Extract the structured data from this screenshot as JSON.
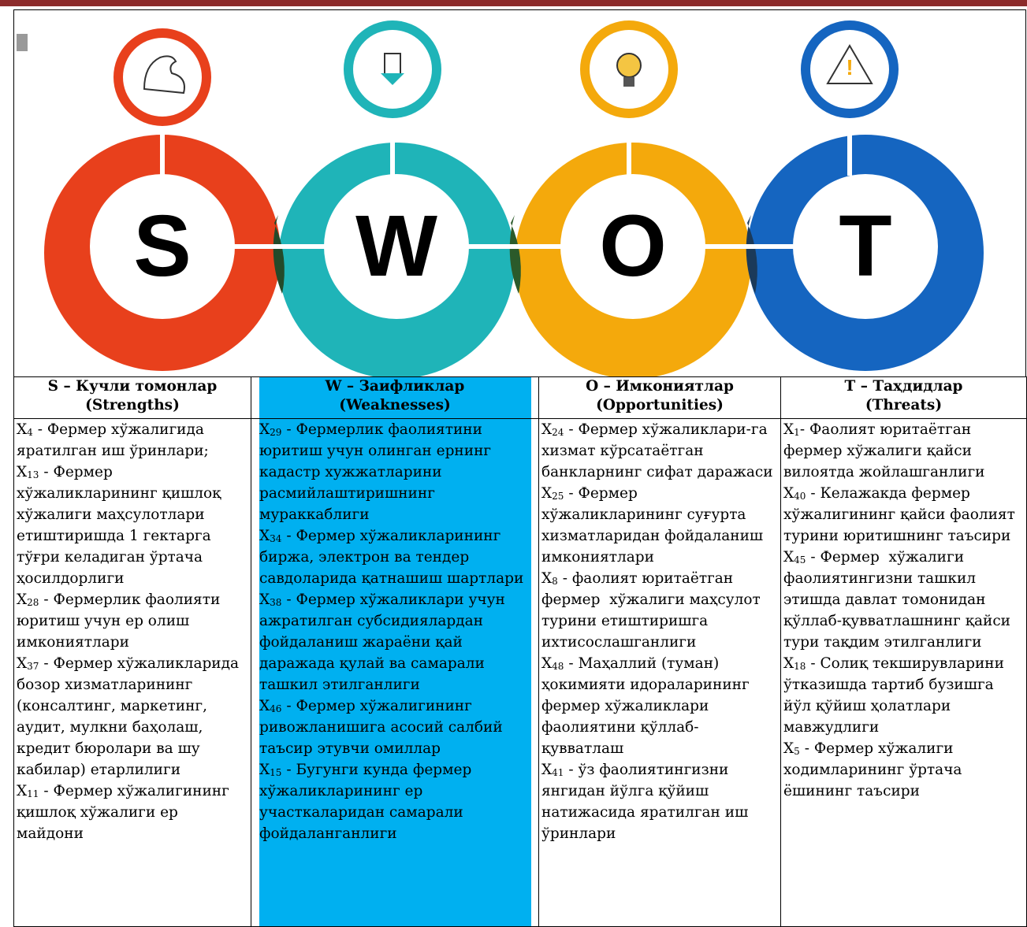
{
  "graphic": {
    "letters": [
      "S",
      "W",
      "O",
      "T"
    ]
  },
  "table": {
    "columns": [
      {
        "header": [
          "S – Кучли томонлар",
          "(Strengths)"
        ],
        "items": [
          {
            "label": "X",
            "sub": "4",
            "text": " - Фермер хўжалигида яратилган иш ўринлари;"
          },
          {
            "label": "X",
            "sub": "13",
            "text": " - Фермер хўжаликларининг қишлоқ хўжалиги маҳсулотлари етиштиришда 1 гектарга тўғри келадиган ўртача ҳосилдорлиги"
          },
          {
            "label": "X",
            "sub": "28",
            "text": " - Фермерлик фаолияти юритиш учун ер олиш имкониятлари"
          },
          {
            "label": "X",
            "sub": "37",
            "text": " - Фермер хўжаликларида бозор хизматларининг (консалтинг, маркетинг, аудит, мулкни баҳолаш, кредит бюролари ва шу кабилар) етарлилиги"
          },
          {
            "label": "X",
            "sub": "11",
            "text": " - Фермер хўжалигининг қишлоқ хўжалиги ер майдони"
          }
        ]
      },
      {
        "header": [
          "W – Заифликлар",
          "(Weaknesses)"
        ],
        "items": [
          {
            "label": "X",
            "sub": "29",
            "text": " - Фермерлик фаолиятини юритиш учун олинган ернинг кадастр хужжатларини расмийлаштиришнинг мураккаблиги"
          },
          {
            "label": "X",
            "sub": "34",
            "text": " - Фермер хўжаликларининг биржа, электрон ва тендер савдоларида қатнашиш шартлари"
          },
          {
            "label": "X",
            "sub": "38",
            "text": " - Фермер хўжаликлари учун ажратилган субсидиялардан   фойдаланиш жараёни қай даражада қулай ва самарали ташкил этилганлиги"
          },
          {
            "label": "X",
            "sub": "46",
            "text": " - Фермер хўжалигининг ривожланишига асосий салбий таъсир этувчи омиллар"
          },
          {
            "label": "X",
            "sub": "15",
            "text": " - Бугунги кунда фермер хўжаликларининг ер участкаларидан самарали фойдаланганлиги"
          }
        ]
      },
      {
        "header": [
          "O – Имкониятлар",
          "(Opportunities)"
        ],
        "items": [
          {
            "label": "X",
            "sub": "24",
            "text": " - Фермер хўжаликлари-га хизмат кўрсатаётган банкларнинг сифат даражаси"
          },
          {
            "label": "X",
            "sub": "25",
            "text": " - Фермер хўжаликларининг суғурта хизматларидан фойдаланиш имкониятлари"
          },
          {
            "label": "X",
            "sub": "8",
            "text": " - фаолият юритаётган фермер  хўжалиги маҳсулот турини етиштиришга ихтисослашганлиги"
          },
          {
            "label": "X",
            "sub": "48",
            "text": " - Маҳаллий (туман) ҳокимияти идораларининг фермер хўжаликлари фаолиятини қўллаб-қувватлаш"
          },
          {
            "label": "X",
            "sub": "41",
            "text": " - ўз фаолиятингизни янгидан йўлга қўйиш натижасида яратилган иш ўринлари"
          }
        ]
      },
      {
        "header": [
          "T – Таҳдидлар",
          "(Threats)"
        ],
        "items": [
          {
            "label": "X",
            "sub": "1",
            "text": "- Фаолият юритаётган фермер хўжалиги қайси вилоятда жойлашганлиги"
          },
          {
            "label": "X",
            "sub": "40",
            "text": " - Келажакда фермер хўжалигининг қайси фаолият турини юритишнинг таъсири"
          },
          {
            "label": "X",
            "sub": "45",
            "text": " - Фермер  хўжалиги фаолиятингизни ташкил этишда давлат томонидан қўллаб-қувватлашнинг қайси тури тақдим этилганлиги"
          },
          {
            "label": "X",
            "sub": "18",
            "text": " - Солиқ текширувларини ўтказишда тартиб бузишга йўл қўйиш ҳолатлари мавжудлиги"
          },
          {
            "label": "X",
            "sub": "5",
            "text": " - Фермер хўжалиги ходимларининг ўртача ёшининг таъсири"
          }
        ]
      }
    ]
  }
}
